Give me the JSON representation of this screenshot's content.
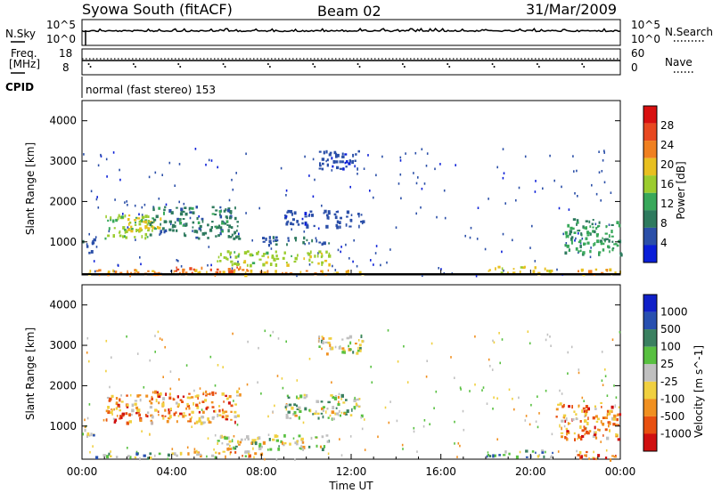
{
  "header": {
    "station": "Syowa South (fitACF)",
    "beam": "Beam 02",
    "date": "31/Mar/2009"
  },
  "strips": {
    "nsky_label": "N.Sky",
    "nsearch_label": "N.Search",
    "nsky_ticks": [
      "10^5",
      "10^0"
    ],
    "nsearch_ticks": [
      "10^5",
      "10^0"
    ],
    "freq_label_1": "Freq.",
    "freq_label_2": "[MHz]",
    "freq_ticks": [
      "18",
      "8"
    ],
    "nave_label": "Nave",
    "nave_ticks": [
      "60",
      "0"
    ],
    "cpid_label": "CPID",
    "cpid_value": "normal (fast stereo) 153"
  },
  "xaxis": {
    "label": "Time UT",
    "ticks": [
      "00:00",
      "04:00",
      "08:00",
      "12:00",
      "16:00",
      "20:00",
      "00:00"
    ]
  },
  "colors": {
    "power": [
      "#0a1ed8",
      "#2b4fa8",
      "#2e7a5e",
      "#38a85a",
      "#9bcc2e",
      "#e8c020",
      "#f08020",
      "#e84820",
      "#d81010"
    ],
    "velocity": [
      "#1020c8",
      "#2850b0",
      "#3a8060",
      "#58c040",
      "#c0c0c0",
      "#f0d040",
      "#f09020",
      "#e85010",
      "#d01010"
    ]
  },
  "chart_data": [
    {
      "type": "heatmap",
      "title": "",
      "xlabel": "Time UT",
      "ylabel": "Slant Range [km]",
      "xlim": [
        0,
        24
      ],
      "ylim": [
        180,
        4500
      ],
      "yticks": [
        1000,
        2000,
        3000,
        4000
      ],
      "colorbar": {
        "label": "Power [dB]",
        "ticks": [
          "4",
          "8",
          "12",
          "16",
          "20",
          "24",
          "28"
        ],
        "range": [
          0,
          32
        ]
      },
      "regions": [
        {
          "t": [
            0.0,
            0.5
          ],
          "r": [
            750,
            1100
          ],
          "v": 6
        },
        {
          "t": [
            1.0,
            3.0
          ],
          "r": [
            1100,
            1700
          ],
          "v": 15
        },
        {
          "t": [
            2.0,
            3.5
          ],
          "r": [
            1300,
            1700
          ],
          "v": 18
        },
        {
          "t": [
            3.0,
            7.0
          ],
          "r": [
            1100,
            1900
          ],
          "v": 9
        },
        {
          "t": [
            0.0,
            12.5
          ],
          "r": [
            200,
            330
          ],
          "v": 22
        },
        {
          "t": [
            4.0,
            7.5
          ],
          "r": [
            250,
            400
          ],
          "v": 26
        },
        {
          "t": [
            6.0,
            11.0
          ],
          "r": [
            450,
            800
          ],
          "v": 16
        },
        {
          "t": [
            8.0,
            11.0
          ],
          "r": [
            950,
            1150
          ],
          "v": 7
        },
        {
          "t": [
            9.0,
            12.5
          ],
          "r": [
            1400,
            1800
          ],
          "v": 5
        },
        {
          "t": [
            10.5,
            12.5
          ],
          "r": [
            2800,
            3300
          ],
          "v": 5
        },
        {
          "t": [
            18.0,
            21.0
          ],
          "r": [
            250,
            420
          ],
          "v": 18
        },
        {
          "t": [
            21.5,
            24.0
          ],
          "r": [
            700,
            1600
          ],
          "v": 11
        },
        {
          "t": [
            22.0,
            24.0
          ],
          "r": [
            200,
            350
          ],
          "v": 22
        }
      ]
    },
    {
      "type": "heatmap",
      "title": "",
      "xlabel": "Time UT",
      "ylabel": "Slant Range [km]",
      "xlim": [
        0,
        24
      ],
      "ylim": [
        180,
        4500
      ],
      "yticks": [
        1000,
        2000,
        3000,
        4000
      ],
      "colorbar": {
        "label": "Velocity [m s^-1]",
        "ticks": [
          "1000",
          "500",
          "100",
          "25",
          "-25",
          "-100",
          "-500",
          "-1000"
        ]
      },
      "regions": [
        {
          "t": [
            0.0,
            0.5
          ],
          "r": [
            750,
            1100
          ],
          "v": 3
        },
        {
          "t": [
            1.0,
            3.0
          ],
          "r": [
            1100,
            1800
          ],
          "v": 6
        },
        {
          "t": [
            3.0,
            7.0
          ],
          "r": [
            1100,
            1900
          ],
          "v": 6
        },
        {
          "t": [
            0.5,
            4.0
          ],
          "r": [
            200,
            350
          ],
          "v": 3
        },
        {
          "t": [
            4.0,
            8.0
          ],
          "r": [
            250,
            400
          ],
          "v": 5
        },
        {
          "t": [
            6.0,
            11.0
          ],
          "r": [
            450,
            800
          ],
          "v": 4
        },
        {
          "t": [
            9.0,
            12.5
          ],
          "r": [
            1200,
            1800
          ],
          "v": 4
        },
        {
          "t": [
            10.5,
            12.5
          ],
          "r": [
            2800,
            3300
          ],
          "v": 4
        },
        {
          "t": [
            18.0,
            21.0
          ],
          "r": [
            250,
            420
          ],
          "v": 3
        },
        {
          "t": [
            21.0,
            24.0
          ],
          "r": [
            700,
            1600
          ],
          "v": 6
        },
        {
          "t": [
            22.0,
            24.0
          ],
          "r": [
            200,
            400
          ],
          "v": 7
        }
      ]
    }
  ]
}
